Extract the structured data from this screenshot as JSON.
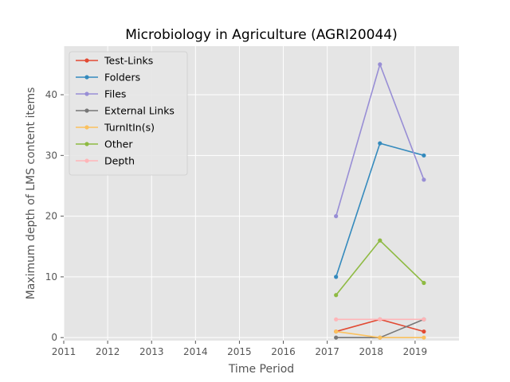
{
  "chart_data": {
    "type": "line",
    "title": "Microbiology in Agriculture (AGRI20044)",
    "xlabel": "Time Period",
    "ylabel": "Maximum depth of LMS content items",
    "xlim": [
      2011,
      2020
    ],
    "ylim": [
      -0.5,
      48
    ],
    "x_ticks": [
      2011,
      2012,
      2013,
      2014,
      2015,
      2016,
      2017,
      2018,
      2019
    ],
    "y_ticks": [
      0,
      10,
      20,
      30,
      40
    ],
    "grid": true,
    "legend_position": "top-left",
    "x": [
      2017.2,
      2018.2,
      2019.2
    ],
    "series": [
      {
        "name": "Test-Links",
        "color": "#E24A33",
        "values": [
          1,
          3,
          1
        ]
      },
      {
        "name": "Folders",
        "color": "#348ABD",
        "values": [
          10,
          32,
          30
        ]
      },
      {
        "name": "Files",
        "color": "#988ED5",
        "values": [
          20,
          45,
          26
        ]
      },
      {
        "name": "External Links",
        "color": "#777777",
        "values": [
          0,
          0,
          3
        ]
      },
      {
        "name": "TurnItIn(s)",
        "color": "#FBC15E",
        "values": [
          1,
          0,
          0
        ]
      },
      {
        "name": "Other",
        "color": "#8EBA42",
        "values": [
          7,
          16,
          9
        ]
      },
      {
        "name": "Depth",
        "color": "#FFB5B8",
        "values": [
          3,
          3,
          3
        ]
      }
    ]
  }
}
